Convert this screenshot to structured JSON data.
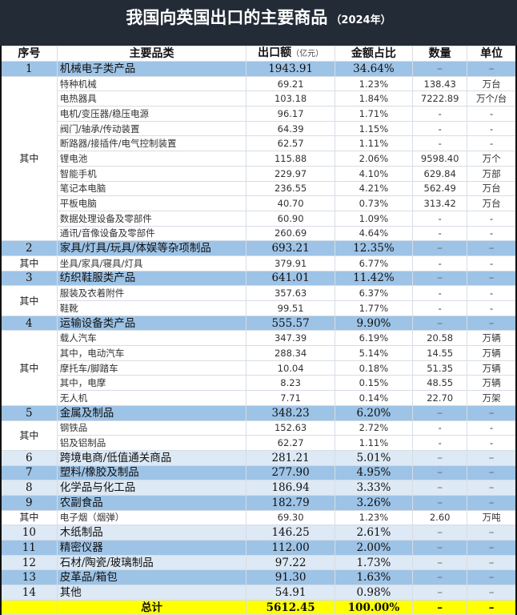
{
  "title": {
    "main": "我国向英国出口的主要商品",
    "year": "（2024年）"
  },
  "header": {
    "index": "序号",
    "category": "主要品类",
    "amount": "出口额",
    "amount_unit": "（亿元）",
    "share": "金额占比",
    "quantity": "数量",
    "unit": "单位"
  },
  "colors": {
    "title_bg": "#222b36",
    "major_row": "#9dc3e6",
    "major_row_light": "#dde9f5",
    "total_row": "#ffff00"
  },
  "sub_label": "其中",
  "groups": [
    {
      "major": {
        "index": "1",
        "name": "机械电子类产品",
        "amount": "1943.91",
        "share": "34.64%",
        "qty": "–",
        "unit": "–",
        "style": "major"
      },
      "subs": [
        {
          "name": "特种机械",
          "amount": "69.21",
          "share": "1.23%",
          "qty": "138.43",
          "unit": "万台"
        },
        {
          "name": "电热器具",
          "amount": "103.18",
          "share": "1.84%",
          "qty": "7222.89",
          "unit": "万个/台"
        },
        {
          "name": "电机/变压器/稳压电源",
          "amount": "96.17",
          "share": "1.71%",
          "qty": "-",
          "unit": "-"
        },
        {
          "name": "阀门/轴承/传动装置",
          "amount": "64.39",
          "share": "1.15%",
          "qty": "-",
          "unit": "-"
        },
        {
          "name": "断路器/接插件/电气控制装置",
          "amount": "62.57",
          "share": "1.11%",
          "qty": "-",
          "unit": "-"
        },
        {
          "name": "锂电池",
          "amount": "115.88",
          "share": "2.06%",
          "qty": "9598.40",
          "unit": "万个"
        },
        {
          "name": "智能手机",
          "amount": "229.97",
          "share": "4.10%",
          "qty": "629.84",
          "unit": "万部"
        },
        {
          "name": "笔记本电脑",
          "amount": "236.55",
          "share": "4.21%",
          "qty": "562.49",
          "unit": "万台"
        },
        {
          "name": "平板电脑",
          "amount": "40.70",
          "share": "0.73%",
          "qty": "313.42",
          "unit": "万台"
        },
        {
          "name": "数据处理设备及零部件",
          "amount": "60.90",
          "share": "1.09%",
          "qty": "-",
          "unit": "-"
        },
        {
          "name": "通讯/音像设备及零部件",
          "amount": "260.69",
          "share": "4.64%",
          "qty": "-",
          "unit": "-"
        }
      ]
    },
    {
      "major": {
        "index": "2",
        "name": "家具/灯具/玩具/体娱等杂项制品",
        "amount": "693.21",
        "share": "12.35%",
        "qty": "–",
        "unit": "–",
        "style": "major"
      },
      "subs": [
        {
          "name": "坐具/家具/寝具/灯具",
          "amount": "379.91",
          "share": "6.77%",
          "qty": "-",
          "unit": "-"
        }
      ]
    },
    {
      "major": {
        "index": "3",
        "name": "纺织鞋服类产品",
        "amount": "641.01",
        "share": "11.42%",
        "qty": "–",
        "unit": "–",
        "style": "major"
      },
      "subs": [
        {
          "name": "服装及衣着附件",
          "amount": "357.63",
          "share": "6.37%",
          "qty": "-",
          "unit": "-"
        },
        {
          "name": "鞋靴",
          "amount": "99.51",
          "share": "1.77%",
          "qty": "-",
          "unit": "-"
        }
      ]
    },
    {
      "major": {
        "index": "4",
        "name": "运输设备类产品",
        "amount": "555.57",
        "share": "9.90%",
        "qty": "–",
        "unit": "–",
        "style": "major"
      },
      "subs": [
        {
          "name": "载人汽车",
          "amount": "347.39",
          "share": "6.19%",
          "qty": "20.58",
          "unit": "万辆"
        },
        {
          "name": "其中，电动汽车",
          "amount": "288.34",
          "share": "5.14%",
          "qty": "14.55",
          "unit": "万辆"
        },
        {
          "name": "摩托车/脚踏车",
          "amount": "10.04",
          "share": "0.18%",
          "qty": "51.35",
          "unit": "万辆"
        },
        {
          "name": "其中，电摩",
          "amount": "8.23",
          "share": "0.15%",
          "qty": "48.55",
          "unit": "万辆"
        },
        {
          "name": "无人机",
          "amount": "7.71",
          "share": "0.14%",
          "qty": "22.70",
          "unit": "万架"
        }
      ]
    },
    {
      "major": {
        "index": "5",
        "name": "金属及制品",
        "amount": "348.23",
        "share": "6.20%",
        "qty": "–",
        "unit": "–",
        "style": "major"
      },
      "subs": [
        {
          "name": "钢铁品",
          "amount": "152.63",
          "share": "2.72%",
          "qty": "-",
          "unit": "-"
        },
        {
          "name": "铝及铝制品",
          "amount": "62.27",
          "share": "1.11%",
          "qty": "-",
          "unit": "-"
        }
      ]
    },
    {
      "major": {
        "index": "6",
        "name": "跨境电商/低值通关商品",
        "amount": "281.21",
        "share": "5.01%",
        "qty": "–",
        "unit": "–",
        "style": "major-light"
      },
      "subs": []
    },
    {
      "major": {
        "index": "7",
        "name": "塑料/橡胶及制品",
        "amount": "277.90",
        "share": "4.95%",
        "qty": "–",
        "unit": "–",
        "style": "major"
      },
      "subs": []
    },
    {
      "major": {
        "index": "8",
        "name": "化学品与化工品",
        "amount": "186.94",
        "share": "3.33%",
        "qty": "–",
        "unit": "–",
        "style": "major-light"
      },
      "subs": []
    },
    {
      "major": {
        "index": "9",
        "name": "农副食品",
        "amount": "182.79",
        "share": "3.26%",
        "qty": "–",
        "unit": "–",
        "style": "major"
      },
      "subs": [
        {
          "name": "电子烟（烟弹）",
          "amount": "69.30",
          "share": "1.23%",
          "qty": "2.60",
          "unit": "万吨"
        }
      ]
    },
    {
      "major": {
        "index": "10",
        "name": "木纸制品",
        "amount": "146.25",
        "share": "2.61%",
        "qty": "–",
        "unit": "–",
        "style": "major-light"
      },
      "subs": []
    },
    {
      "major": {
        "index": "11",
        "name": "精密仪器",
        "amount": "112.00",
        "share": "2.00%",
        "qty": "–",
        "unit": "–",
        "style": "major"
      },
      "subs": []
    },
    {
      "major": {
        "index": "12",
        "name": "石材/陶瓷/玻璃制品",
        "amount": "97.22",
        "share": "1.73%",
        "qty": "–",
        "unit": "–",
        "style": "major-light"
      },
      "subs": []
    },
    {
      "major": {
        "index": "13",
        "name": "皮革品/箱包",
        "amount": "91.30",
        "share": "1.63%",
        "qty": "–",
        "unit": "–",
        "style": "major"
      },
      "subs": []
    },
    {
      "major": {
        "index": "14",
        "name": "其他",
        "amount": "54.91",
        "share": "0.98%",
        "qty": "–",
        "unit": "–",
        "style": "major-light"
      },
      "subs": []
    }
  ],
  "total": {
    "label": "总计",
    "amount": "5612.45",
    "share": "100.00%",
    "qty": "–",
    "unit": "–"
  }
}
